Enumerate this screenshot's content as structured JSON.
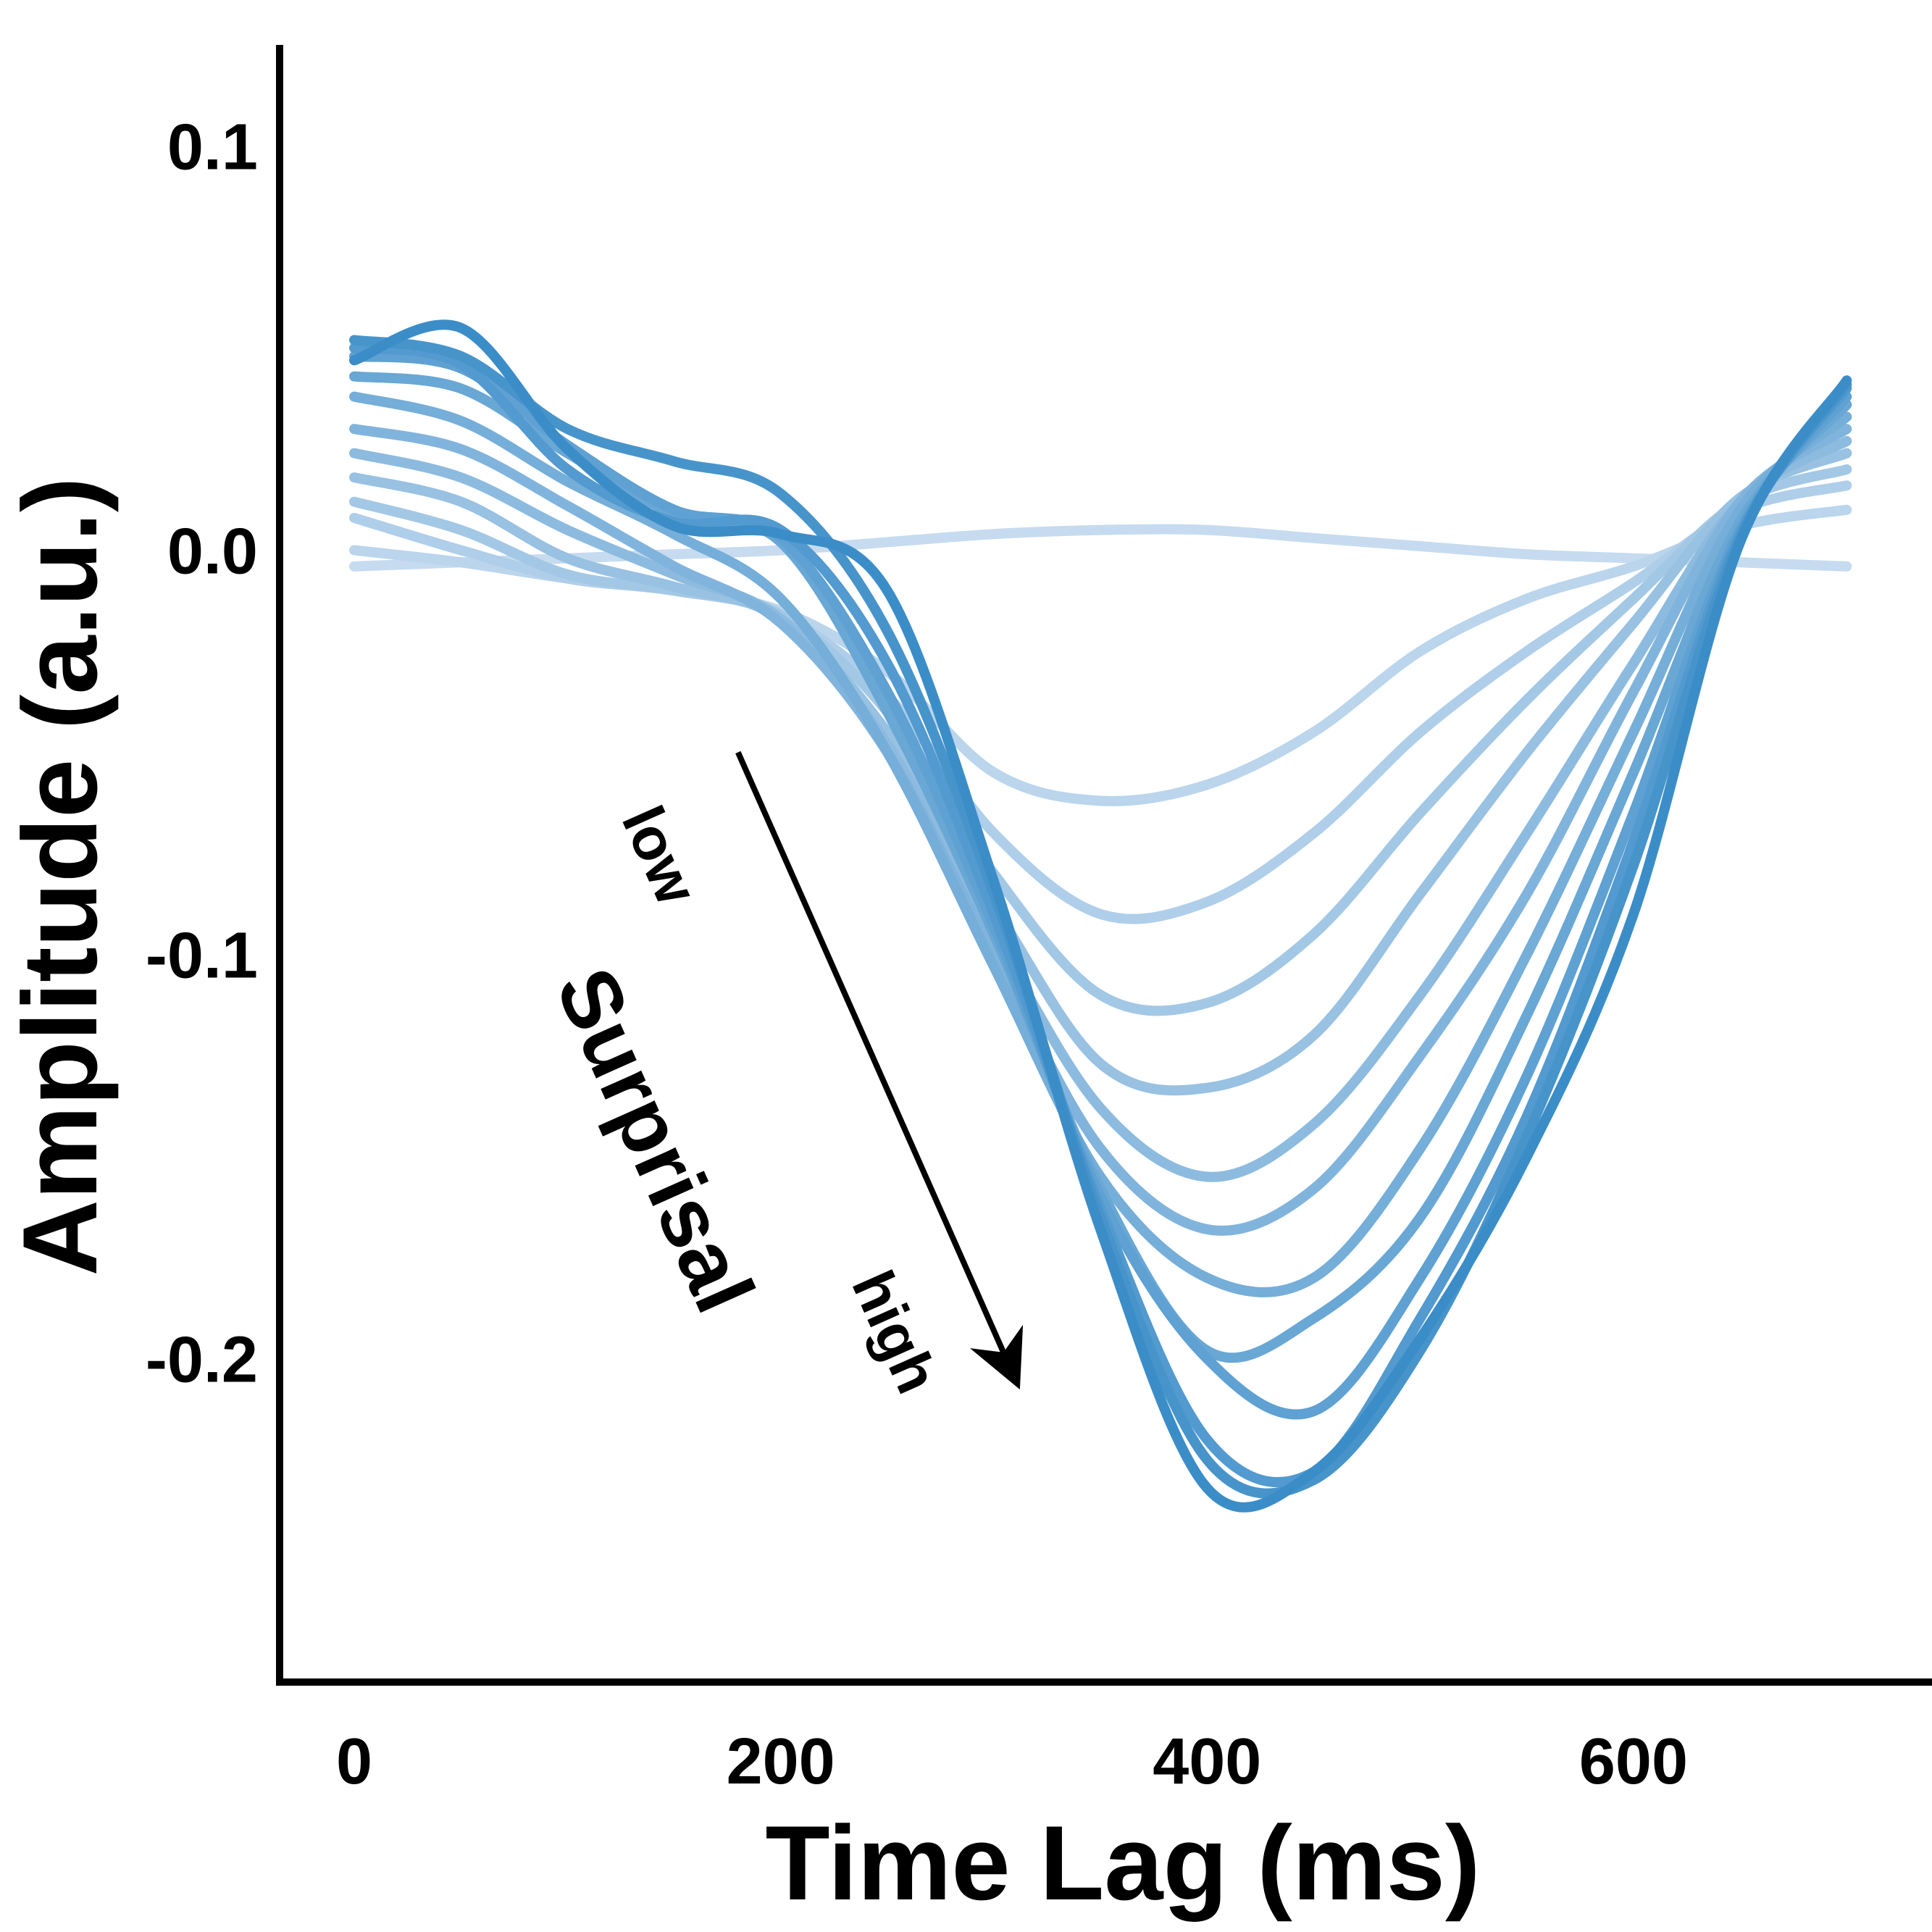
{
  "chart_data": {
    "type": "line",
    "xlabel": "Time Lag (ms)",
    "ylabel": "Amplitude (a.u.)",
    "xlim": [
      -35,
      740
    ],
    "ylim": [
      -0.28,
      0.125
    ],
    "xticks": [
      0,
      200,
      400,
      600
    ],
    "xtick_labels": [
      "0",
      "200",
      "400",
      "600"
    ],
    "yticks": [
      0.1,
      0.0,
      -0.1,
      -0.2
    ],
    "ytick_labels": [
      "0.1",
      "0.0",
      "-0.1",
      "-0.2"
    ],
    "grid": false,
    "legend": "none",
    "annotation": {
      "title": "Surprisal",
      "low_label": "low",
      "high_label": "high",
      "arrow_from": [
        180,
        -0.05
      ],
      "arrow_to": [
        310,
        -0.205
      ]
    },
    "colors": {
      "light": "#c6dbef",
      "dark": "#3b8dc8",
      "axis": "#000000"
    },
    "x": [
      0,
      50,
      100,
      150,
      200,
      250,
      300,
      350,
      400,
      450,
      500,
      550,
      600,
      650,
      700
    ],
    "series": [
      {
        "values": [
          -0.004,
          -0.003,
          -0.002,
          -0.001,
          0.0,
          0.002,
          0.004,
          0.005,
          0.005,
          0.003,
          0.001,
          -0.001,
          -0.002,
          -0.003,
          -0.004
        ]
      },
      {
        "values": [
          0.0,
          -0.003,
          -0.007,
          -0.01,
          -0.015,
          -0.03,
          -0.055,
          -0.062,
          -0.058,
          -0.045,
          -0.025,
          -0.012,
          -0.004,
          0.006,
          0.01
        ]
      },
      {
        "values": [
          0.008,
          0.0,
          -0.007,
          -0.01,
          -0.016,
          -0.036,
          -0.07,
          -0.09,
          -0.087,
          -0.07,
          -0.045,
          -0.025,
          -0.008,
          0.01,
          0.016
        ]
      },
      {
        "values": [
          0.012,
          0.005,
          -0.006,
          -0.01,
          -0.016,
          -0.04,
          -0.08,
          -0.11,
          -0.112,
          -0.095,
          -0.065,
          -0.037,
          -0.012,
          0.012,
          0.02
        ]
      },
      {
        "values": [
          0.018,
          0.012,
          -0.002,
          -0.009,
          -0.017,
          -0.045,
          -0.088,
          -0.127,
          -0.133,
          -0.12,
          -0.085,
          -0.05,
          -0.018,
          0.013,
          0.024
        ]
      },
      {
        "values": [
          0.024,
          0.018,
          0.005,
          -0.006,
          -0.017,
          -0.048,
          -0.095,
          -0.138,
          -0.155,
          -0.142,
          -0.11,
          -0.07,
          -0.028,
          0.012,
          0.027
        ]
      },
      {
        "values": [
          0.03,
          0.025,
          0.011,
          -0.004,
          -0.018,
          -0.05,
          -0.1,
          -0.148,
          -0.168,
          -0.158,
          -0.125,
          -0.085,
          -0.035,
          0.012,
          0.03
        ]
      },
      {
        "values": [
          0.038,
          0.032,
          0.017,
          0.004,
          -0.012,
          -0.05,
          -0.103,
          -0.155,
          -0.18,
          -0.18,
          -0.148,
          -0.1,
          -0.045,
          0.01,
          0.033
        ]
      },
      {
        "values": [
          0.043,
          0.04,
          0.024,
          0.009,
          0.002,
          -0.04,
          -0.095,
          -0.158,
          -0.198,
          -0.19,
          -0.165,
          -0.115,
          -0.055,
          0.007,
          0.036
        ]
      },
      {
        "values": [
          0.048,
          0.045,
          0.026,
          0.01,
          0.003,
          -0.035,
          -0.093,
          -0.16,
          -0.2,
          -0.213,
          -0.18,
          -0.13,
          -0.065,
          0.005,
          0.038
        ]
      },
      {
        "values": [
          0.05,
          0.046,
          0.02,
          0.007,
          0.005,
          -0.028,
          -0.09,
          -0.163,
          -0.22,
          -0.228,
          -0.19,
          -0.14,
          -0.072,
          0.004,
          0.04
        ]
      },
      {
        "values": [
          0.052,
          0.048,
          0.03,
          0.022,
          0.014,
          -0.02,
          -0.085,
          -0.165,
          -0.225,
          -0.23,
          -0.198,
          -0.145,
          -0.078,
          0.003,
          0.041
        ]
      },
      {
        "values": [
          0.047,
          0.055,
          0.025,
          0.006,
          0.004,
          -0.01,
          -0.082,
          -0.168,
          -0.232,
          -0.228,
          -0.195,
          -0.15,
          -0.09,
          0.002,
          0.042
        ]
      }
    ]
  }
}
